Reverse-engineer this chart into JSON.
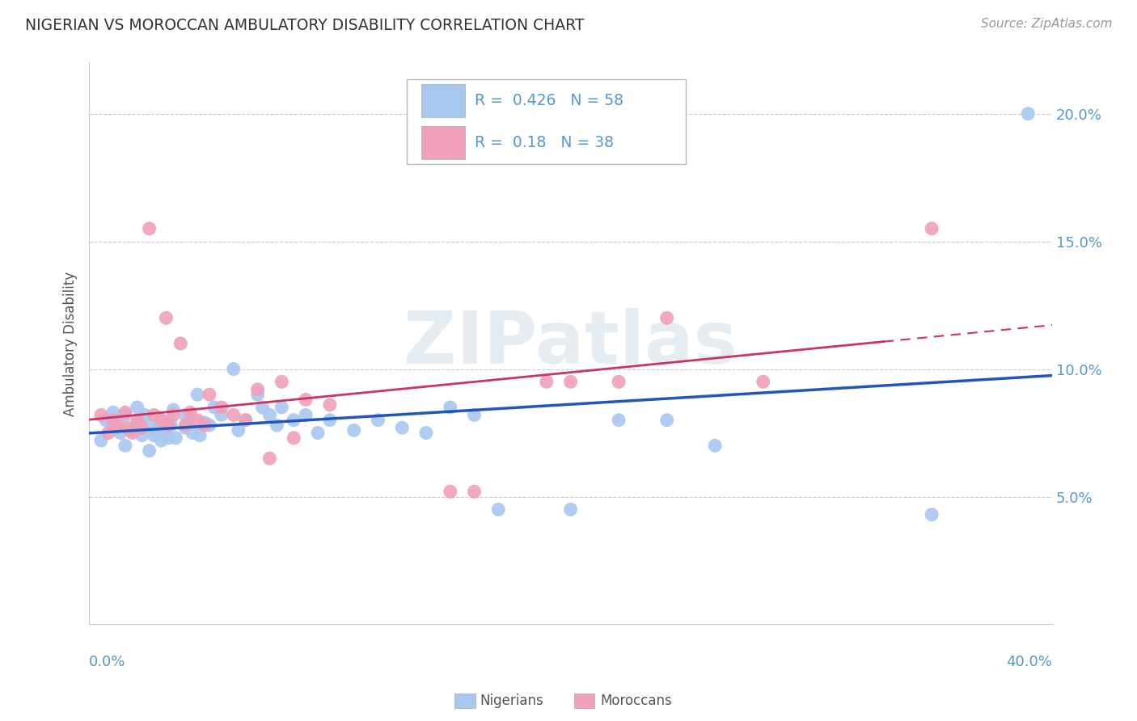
{
  "title": "NIGERIAN VS MOROCCAN AMBULATORY DISABILITY CORRELATION CHART",
  "source": "Source: ZipAtlas.com",
  "ylabel": "Ambulatory Disability",
  "xlim": [
    0.0,
    0.4
  ],
  "ylim": [
    0.0,
    0.22
  ],
  "ytick_vals": [
    0.05,
    0.1,
    0.15,
    0.2
  ],
  "ytick_labels": [
    "5.0%",
    "10.0%",
    "15.0%",
    "20.0%"
  ],
  "nigerian_R": 0.426,
  "nigerian_N": 58,
  "moroccan_R": 0.18,
  "moroccan_N": 38,
  "nigerian_color": "#a8c8f0",
  "moroccan_color": "#f0a0b8",
  "nigerian_line_color": "#2255bb",
  "moroccan_line_color": "#cc3366",
  "background_color": "#ffffff",
  "grid_color": "#cccccc",
  "title_color": "#333333",
  "axis_label_color": "#555555",
  "tick_color": "#5599cc",
  "watermark": "ZIPatlas",
  "nigerian_x": [
    0.005,
    0.007,
    0.01,
    0.01,
    0.013,
    0.015,
    0.015,
    0.018,
    0.02,
    0.02,
    0.022,
    0.023,
    0.025,
    0.025,
    0.027,
    0.028,
    0.03,
    0.03,
    0.032,
    0.033,
    0.034,
    0.035,
    0.036,
    0.04,
    0.04,
    0.042,
    0.043,
    0.045,
    0.046,
    0.048,
    0.05,
    0.052,
    0.055,
    0.06,
    0.062,
    0.065,
    0.07,
    0.072,
    0.075,
    0.078,
    0.08,
    0.085,
    0.09,
    0.095,
    0.1,
    0.11,
    0.12,
    0.13,
    0.14,
    0.15,
    0.16,
    0.17,
    0.2,
    0.22,
    0.24,
    0.26,
    0.35,
    0.39
  ],
  "nigerian_y": [
    0.072,
    0.08,
    0.078,
    0.083,
    0.075,
    0.07,
    0.082,
    0.076,
    0.085,
    0.079,
    0.074,
    0.082,
    0.068,
    0.078,
    0.074,
    0.076,
    0.072,
    0.08,
    0.075,
    0.073,
    0.078,
    0.084,
    0.073,
    0.082,
    0.077,
    0.08,
    0.075,
    0.09,
    0.074,
    0.079,
    0.078,
    0.085,
    0.082,
    0.1,
    0.076,
    0.08,
    0.09,
    0.085,
    0.082,
    0.078,
    0.085,
    0.08,
    0.082,
    0.075,
    0.08,
    0.076,
    0.08,
    0.077,
    0.075,
    0.085,
    0.082,
    0.045,
    0.045,
    0.08,
    0.08,
    0.07,
    0.043,
    0.2
  ],
  "moroccan_x": [
    0.005,
    0.008,
    0.01,
    0.012,
    0.015,
    0.016,
    0.018,
    0.02,
    0.022,
    0.025,
    0.027,
    0.03,
    0.032,
    0.033,
    0.035,
    0.038,
    0.04,
    0.042,
    0.045,
    0.048,
    0.05,
    0.055,
    0.06,
    0.065,
    0.07,
    0.075,
    0.08,
    0.085,
    0.09,
    0.1,
    0.15,
    0.16,
    0.19,
    0.2,
    0.22,
    0.24,
    0.28,
    0.35
  ],
  "moroccan_y": [
    0.082,
    0.075,
    0.08,
    0.078,
    0.083,
    0.077,
    0.075,
    0.08,
    0.077,
    0.155,
    0.082,
    0.08,
    0.12,
    0.078,
    0.082,
    0.11,
    0.078,
    0.083,
    0.08,
    0.078,
    0.09,
    0.085,
    0.082,
    0.08,
    0.092,
    0.065,
    0.095,
    0.073,
    0.088,
    0.086,
    0.052,
    0.052,
    0.095,
    0.095,
    0.095,
    0.12,
    0.095,
    0.155
  ]
}
